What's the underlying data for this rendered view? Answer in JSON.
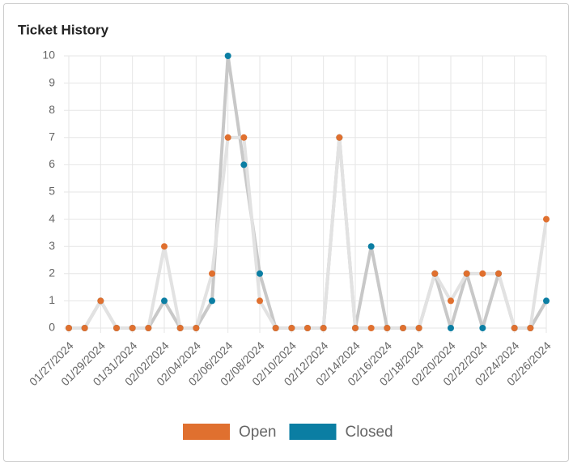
{
  "chart_data": {
    "type": "line",
    "title": "Ticket History",
    "categories": [
      "01/27/2024",
      null,
      "01/29/2024",
      null,
      "01/31/2024",
      null,
      "02/02/2024",
      null,
      "02/04/2024",
      null,
      "02/06/2024",
      null,
      "02/08/2024",
      null,
      "02/10/2024",
      null,
      "02/12/2024",
      null,
      "02/14/2024",
      null,
      "02/16/2024",
      null,
      "02/18/2024",
      null,
      "02/20/2024",
      null,
      "02/22/2024",
      null,
      "02/24/2024",
      null,
      "02/26/2024"
    ],
    "series": [
      {
        "name": "Closed",
        "color": "#0b7ea3",
        "line_color": "#c8c8c8",
        "values": [
          0,
          0,
          1,
          0,
          0,
          0,
          1,
          0,
          0,
          1,
          10,
          6,
          2,
          0,
          0,
          0,
          0,
          7,
          0,
          3,
          0,
          0,
          0,
          2,
          0,
          2,
          0,
          2,
          0,
          0,
          1
        ]
      },
      {
        "name": "Open",
        "color": "#e0702f",
        "line_color": "#e2e2e2",
        "values": [
          0,
          0,
          1,
          0,
          0,
          0,
          3,
          0,
          0,
          2,
          7,
          7,
          1,
          0,
          0,
          0,
          0,
          7,
          0,
          0,
          0,
          0,
          0,
          2,
          1,
          2,
          2,
          2,
          0,
          0,
          4
        ]
      }
    ],
    "legend_order": [
      "Open",
      "Closed"
    ],
    "ylim": [
      0,
      10
    ],
    "yticks": [
      0,
      1,
      2,
      3,
      4,
      5,
      6,
      7,
      8,
      9,
      10
    ],
    "grid": true,
    "legend": "bottom"
  }
}
